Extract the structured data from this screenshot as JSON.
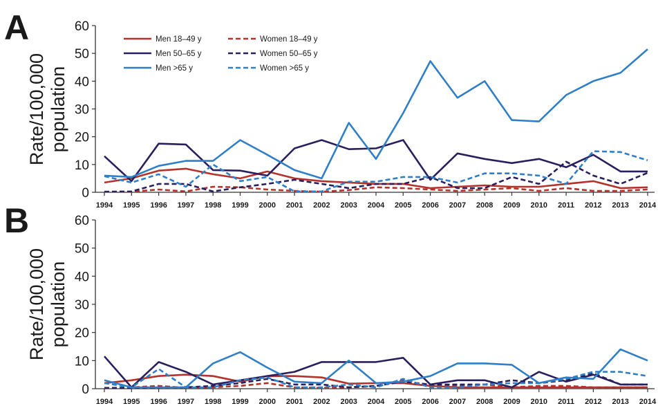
{
  "colors": {
    "men_18_49": "#b5322a",
    "men_50_65": "#2a1f5e",
    "men_over_65": "#2f7fc8",
    "axis": "#333333"
  },
  "chart_data": [
    {
      "type": "line",
      "panel": "A",
      "ylabel_line1": "Rate/100,000",
      "ylabel_line2": "population",
      "ylim": [
        0,
        60
      ],
      "yticks": [
        0,
        10,
        20,
        30,
        40,
        50,
        60
      ],
      "grid": false,
      "legend_position": "top-left",
      "categories": [
        "1994",
        "1995",
        "1996",
        "1997",
        "1998",
        "1999",
        "2000",
        "2001",
        "2002",
        "2003",
        "2004",
        "2005",
        "2006",
        "2007",
        "2008",
        "2009",
        "2010",
        "2011",
        "2012",
        "2013",
        "2014"
      ],
      "series": [
        {
          "name": "Men 18–49 y",
          "color": "#b5322a",
          "style": "solid",
          "values": [
            3.5,
            5.0,
            7.8,
            8.5,
            6.5,
            5.0,
            7.5,
            5.0,
            4.0,
            3.5,
            3.0,
            3.0,
            1.5,
            2.0,
            2.5,
            2.0,
            2.0,
            3.0,
            4.0,
            1.5,
            1.8
          ]
        },
        {
          "name": "Women 18–49 y",
          "color": "#b5322a",
          "style": "dashed",
          "values": [
            0.2,
            0.2,
            1.0,
            0.3,
            2.0,
            1.8,
            1.0,
            0.5,
            0.2,
            0.8,
            1.8,
            1.5,
            1.0,
            0.5,
            1.0,
            1.5,
            0.5,
            1.5,
            0.5,
            0.5,
            1.0
          ]
        },
        {
          "name": "Men 50–65 y",
          "color": "#2a1f5e",
          "style": "solid",
          "values": [
            13.0,
            4.0,
            17.5,
            17.2,
            8.0,
            7.8,
            6.0,
            15.8,
            18.8,
            15.5,
            15.8,
            18.8,
            4.5,
            14.0,
            12.0,
            10.5,
            12.0,
            9.0,
            13.5,
            7.5,
            7.5
          ]
        },
        {
          "name": "Women 50–65 y",
          "color": "#2a1f5e",
          "style": "dashed",
          "values": [
            0.2,
            0.3,
            3.0,
            3.0,
            0.3,
            1.8,
            3.0,
            4.5,
            3.0,
            1.5,
            3.0,
            3.0,
            5.5,
            1.5,
            1.5,
            5.5,
            3.0,
            11.0,
            6.0,
            3.0,
            7.0
          ]
        },
        {
          "name": "Men >65 y",
          "color": "#2f7fc8",
          "style": "solid",
          "values": [
            6.0,
            5.5,
            9.5,
            11.3,
            11.3,
            18.8,
            13.5,
            8.0,
            5.0,
            25.0,
            12.0,
            28.5,
            47.2,
            34.0,
            40.0,
            26.0,
            25.5,
            35.0,
            40.0,
            43.0,
            51.5
          ]
        },
        {
          "name": "Women >65 y",
          "color": "#2f7fc8",
          "style": "dashed",
          "values": [
            5.8,
            3.5,
            6.5,
            2.0,
            10.0,
            4.0,
            5.5,
            0.3,
            0.3,
            3.8,
            3.8,
            5.5,
            5.5,
            3.5,
            6.8,
            6.8,
            6.0,
            3.0,
            14.8,
            14.5,
            11.5
          ]
        }
      ]
    },
    {
      "type": "line",
      "panel": "B",
      "ylabel_line1": "Rate/100,000",
      "ylabel_line2": "population",
      "ylim": [
        0,
        60
      ],
      "yticks": [
        0,
        10,
        20,
        30,
        40,
        50,
        60
      ],
      "grid": false,
      "categories": [
        "1994",
        "1995",
        "1996",
        "1997",
        "1998",
        "1999",
        "2000",
        "2001",
        "2002",
        "2003",
        "2004",
        "2005",
        "2006",
        "2007",
        "2008",
        "2009",
        "2010",
        "2011",
        "2012",
        "2013",
        "2014"
      ],
      "series": [
        {
          "color": "#b5322a",
          "style": "solid",
          "values": [
            2.0,
            3.0,
            4.5,
            5.0,
            4.5,
            2.5,
            4.5,
            4.5,
            4.0,
            1.8,
            2.0,
            2.0,
            1.0,
            0.5,
            0.5,
            0.5,
            0.5,
            0.5,
            0.5,
            0.5,
            0.5
          ]
        },
        {
          "color": "#b5322a",
          "style": "dashed",
          "values": [
            0.2,
            0.5,
            1.0,
            0.3,
            0.5,
            1.0,
            2.0,
            0.5,
            0.3,
            0.5,
            0.8,
            3.0,
            1.0,
            1.0,
            1.5,
            0.5,
            1.0,
            1.0,
            0.5,
            0.5,
            0.5
          ]
        },
        {
          "color": "#2a1f5e",
          "style": "solid",
          "values": [
            11.5,
            0.5,
            9.5,
            6.0,
            1.5,
            3.0,
            4.5,
            6.0,
            9.5,
            9.5,
            9.5,
            11.0,
            1.5,
            3.0,
            3.0,
            0.5,
            6.0,
            2.5,
            5.0,
            1.5,
            1.5
          ]
        },
        {
          "color": "#2a1f5e",
          "style": "dashed",
          "values": [
            0.3,
            0.3,
            0.5,
            0.5,
            1.0,
            2.0,
            3.5,
            1.5,
            1.5,
            0.5,
            1.0,
            2.5,
            1.5,
            1.5,
            1.5,
            3.0,
            2.0,
            3.0,
            5.5,
            1.5,
            1.5
          ]
        },
        {
          "color": "#2f7fc8",
          "style": "solid",
          "values": [
            3.0,
            0.5,
            0.5,
            0.5,
            9.0,
            13.0,
            7.5,
            2.5,
            2.0,
            10.0,
            2.0,
            2.5,
            4.5,
            9.0,
            9.0,
            8.5,
            2.0,
            4.0,
            3.5,
            14.0,
            10.0
          ]
        },
        {
          "color": "#2f7fc8",
          "style": "dashed",
          "values": [
            2.0,
            0.5,
            7.0,
            0.5,
            0.5,
            3.0,
            4.0,
            0.5,
            0.5,
            1.5,
            0.5,
            3.5,
            0.5,
            0.5,
            1.5,
            2.0,
            2.0,
            3.5,
            6.0,
            6.0,
            4.5
          ]
        }
      ]
    }
  ]
}
